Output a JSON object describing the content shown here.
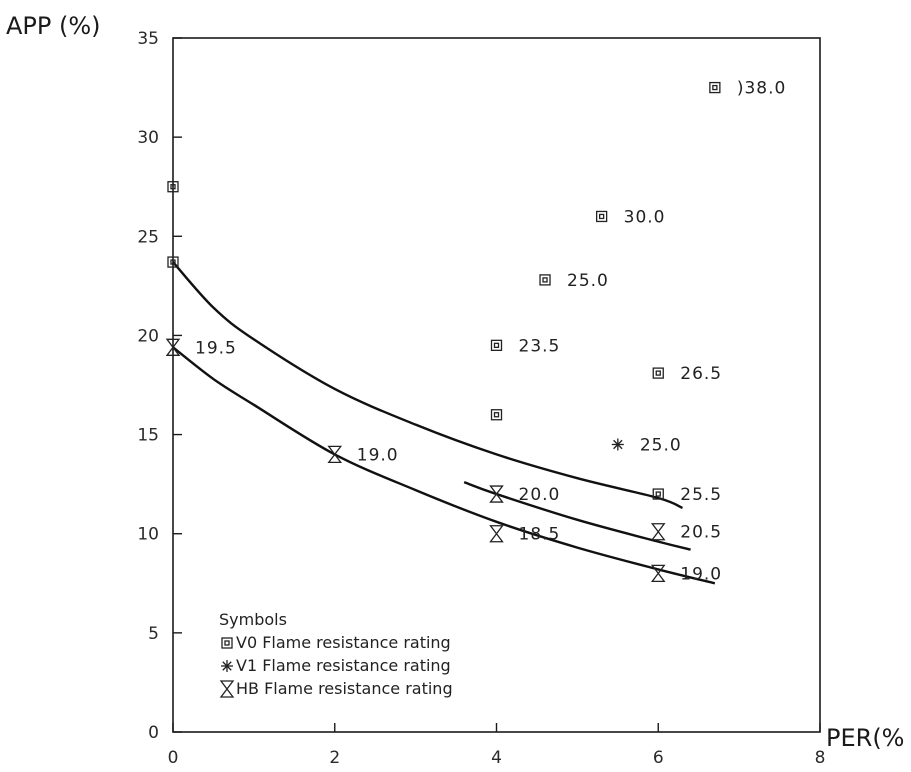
{
  "chart_data": {
    "type": "scatter",
    "ylabel": "APP (%)",
    "xlabel": "PER(%",
    "xlim": [
      0,
      8
    ],
    "ylim": [
      0,
      35
    ],
    "x_ticks": [
      "0",
      "2",
      "4",
      "6",
      "8"
    ],
    "y_ticks": [
      "0",
      "5",
      "10",
      "15",
      "20",
      "25",
      "30",
      "35"
    ],
    "series": [
      {
        "name": "V0 Flame resistance rating",
        "symbol": "square",
        "points": [
          {
            "x": 0,
            "y": 27.5,
            "label": ""
          },
          {
            "x": 0,
            "y": 23.7,
            "label": ""
          },
          {
            "x": 4,
            "y": 19.5,
            "label": "23.5"
          },
          {
            "x": 4,
            "y": 16.0,
            "label": ""
          },
          {
            "x": 4.6,
            "y": 22.8,
            "label": "25.0"
          },
          {
            "x": 5.3,
            "y": 26.0,
            "label": "30.0"
          },
          {
            "x": 6.7,
            "y": 32.5,
            "label": ")38.0"
          },
          {
            "x": 6,
            "y": 18.1,
            "label": "26.5"
          },
          {
            "x": 6,
            "y": 12.0,
            "label": "25.5"
          }
        ]
      },
      {
        "name": "V1 Flame resistance rating",
        "symbol": "asterisk",
        "points": [
          {
            "x": 5.5,
            "y": 14.5,
            "label": "25.0"
          }
        ]
      },
      {
        "name": "HB Flame resistance rating",
        "symbol": "hourglass",
        "points": [
          {
            "x": 0,
            "y": 19.4,
            "label": "19.5"
          },
          {
            "x": 2,
            "y": 14.0,
            "label": "19.0"
          },
          {
            "x": 4,
            "y": 12.0,
            "label": "20.0"
          },
          {
            "x": 4,
            "y": 10.0,
            "label": "18.5"
          },
          {
            "x": 6,
            "y": 10.1,
            "label": "20.5"
          },
          {
            "x": 6,
            "y": 8.0,
            "label": "19.0"
          }
        ]
      }
    ],
    "curves": [
      {
        "points": [
          [
            0,
            23.7
          ],
          [
            0.5,
            21.4
          ],
          [
            1,
            19.8
          ],
          [
            2,
            17.3
          ],
          [
            3,
            15.5
          ],
          [
            4,
            14.0
          ],
          [
            5,
            12.8
          ],
          [
            6,
            11.8
          ],
          [
            6.3,
            11.3
          ]
        ]
      },
      {
        "points": [
          [
            3.6,
            12.6
          ],
          [
            4,
            12.0
          ],
          [
            5,
            10.7
          ],
          [
            6,
            9.6
          ],
          [
            6.4,
            9.2
          ]
        ]
      },
      {
        "points": [
          [
            0,
            19.4
          ],
          [
            0.5,
            17.8
          ],
          [
            1,
            16.5
          ],
          [
            2,
            14.0
          ],
          [
            3,
            12.2
          ],
          [
            4,
            10.6
          ],
          [
            5,
            9.3
          ],
          [
            6,
            8.2
          ],
          [
            6.7,
            7.5
          ]
        ]
      }
    ],
    "legend": {
      "title": "Symbols",
      "position": "bottom-left",
      "items": [
        {
          "symbol": "square",
          "text": "V0 Flame resistance rating"
        },
        {
          "symbol": "asterisk",
          "text": "V1 Flame resistance rating"
        },
        {
          "symbol": "hourglass",
          "text": "HB Flame resistance rating"
        }
      ]
    },
    "grid": false
  }
}
